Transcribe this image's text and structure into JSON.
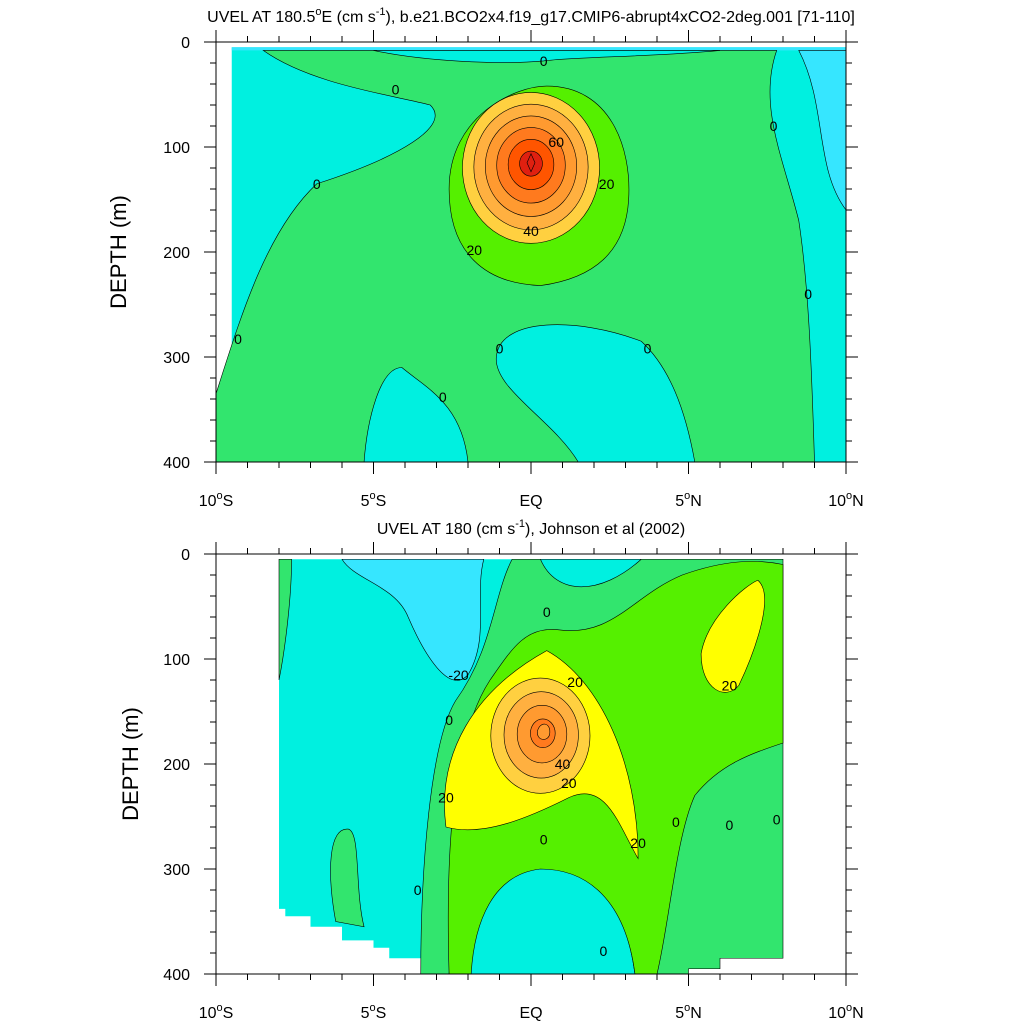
{
  "chart_data": [
    {
      "type": "contour",
      "title_main": "UVEL AT 180.5",
      "title_deg": "o",
      "title_after_deg": "E (cm s",
      "title_sup": "-1",
      "title_tail": "), b.e21.BCO2x4.f19_g17.CMIP6-abrupt4xCO2-2deg.001 [71-110]",
      "ylabel": "DEPTH (m)",
      "xlim": [
        -10,
        10
      ],
      "ylim": [
        0,
        400
      ],
      "y_reversed": true,
      "y_ticks": [
        0,
        100,
        200,
        300,
        400
      ],
      "x_ticks": [
        {
          "value": -10,
          "num": "10",
          "hemi": "S"
        },
        {
          "value": -5,
          "num": "5",
          "hemi": "S"
        },
        {
          "value": 0,
          "num": "EQ",
          "hemi": ""
        },
        {
          "value": 5,
          "num": "5",
          "hemi": "N"
        },
        {
          "value": 10,
          "num": "10",
          "hemi": "N"
        }
      ],
      "contour_interval": 10,
      "field": {
        "core": {
          "lat": 0,
          "depth": 115,
          "max": 80
        },
        "extent": {
          "lat_min": -9.5,
          "lat_max": 10,
          "depth_min": 5,
          "depth_max": 400
        }
      },
      "contour_labels": [
        {
          "text": "0",
          "lat": 0.4,
          "depth": 18
        },
        {
          "text": "0",
          "lat": -4.3,
          "depth": 45
        },
        {
          "text": "0",
          "lat": -6.8,
          "depth": 135
        },
        {
          "text": "0",
          "lat": 7.7,
          "depth": 80
        },
        {
          "text": "0",
          "lat": 8.8,
          "depth": 240
        },
        {
          "text": "0",
          "lat": -9.3,
          "depth": 283
        },
        {
          "text": "0",
          "lat": -1,
          "depth": 292
        },
        {
          "text": "0",
          "lat": 3.7,
          "depth": 292
        },
        {
          "text": "0",
          "lat": -2.8,
          "depth": 338
        },
        {
          "text": "20",
          "lat": 2.4,
          "depth": 135
        },
        {
          "text": "20",
          "lat": -1.8,
          "depth": 198
        },
        {
          "text": "40",
          "lat": 0,
          "depth": 180
        },
        {
          "text": "60",
          "lat": 0.8,
          "depth": 95
        }
      ]
    },
    {
      "type": "contour",
      "title_main": "UVEL AT 180 (cm s",
      "title_sup": "-1",
      "title_tail": "), Johnson et al (2002)",
      "ylabel": "DEPTH (m)",
      "xlim": [
        -10,
        10
      ],
      "ylim": [
        0,
        400
      ],
      "y_reversed": true,
      "y_ticks": [
        0,
        100,
        200,
        300,
        400
      ],
      "x_ticks": [
        {
          "value": -10,
          "num": "10",
          "hemi": "S"
        },
        {
          "value": -5,
          "num": "5",
          "hemi": "S"
        },
        {
          "value": 0,
          "num": "EQ",
          "hemi": ""
        },
        {
          "value": 5,
          "num": "5",
          "hemi": "N"
        },
        {
          "value": 10,
          "num": "10",
          "hemi": "N"
        }
      ],
      "contour_interval": 10,
      "field": {
        "core": {
          "lat": 0.4,
          "depth": 170,
          "max": 60
        },
        "extent": {
          "lat_min": -8,
          "lat_max": 8,
          "depth_min": 5,
          "depth_max": 400
        }
      },
      "contour_labels": [
        {
          "text": "0",
          "lat": 0.5,
          "depth": 55
        },
        {
          "text": "-20",
          "lat": -2.3,
          "depth": 115
        },
        {
          "text": "0",
          "lat": -2.6,
          "depth": 158
        },
        {
          "text": "20",
          "lat": 1.4,
          "depth": 122
        },
        {
          "text": "20",
          "lat": 6.3,
          "depth": 125
        },
        {
          "text": "40",
          "lat": 1,
          "depth": 200
        },
        {
          "text": "20",
          "lat": 1.2,
          "depth": 218
        },
        {
          "text": "20",
          "lat": -2.7,
          "depth": 232
        },
        {
          "text": "20",
          "lat": 3.4,
          "depth": 275
        },
        {
          "text": "0",
          "lat": 0.4,
          "depth": 272
        },
        {
          "text": "0",
          "lat": 4.6,
          "depth": 255
        },
        {
          "text": "0",
          "lat": 6.3,
          "depth": 258
        },
        {
          "text": "0",
          "lat": 7.8,
          "depth": 253
        },
        {
          "text": "0",
          "lat": -3.6,
          "depth": 320
        },
        {
          "text": "0",
          "lat": 2.3,
          "depth": 378
        }
      ]
    }
  ]
}
